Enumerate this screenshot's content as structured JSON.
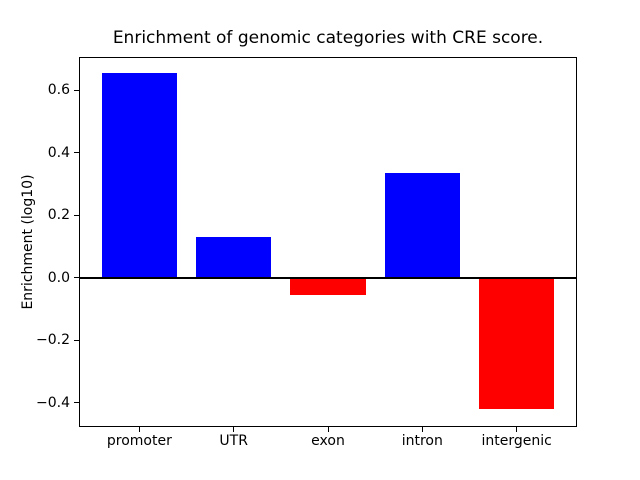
{
  "figure": {
    "background": "#ffffff"
  },
  "chart_data": {
    "type": "bar",
    "title": "Enrichment of genomic categories with CRE score.",
    "xlabel": "",
    "ylabel": "Enrichment (log10)",
    "categories": [
      "promoter",
      "UTR",
      "exon",
      "intron",
      "intergenic"
    ],
    "values": [
      0.655,
      0.13,
      -0.055,
      0.335,
      -0.42
    ],
    "bar_colors": [
      "#0000ff",
      "#0000ff",
      "#ff0000",
      "#0000ff",
      "#ff0000"
    ],
    "positive_color": "#0000ff",
    "negative_color": "#ff0000",
    "bar_width": 0.8,
    "xlim": [
      -0.64,
      4.64
    ],
    "ylim": [
      -0.477,
      0.707
    ],
    "yticks": [
      -0.4,
      -0.2,
      0.0,
      0.2,
      0.4,
      0.6
    ],
    "ytick_labels": [
      "−0.4",
      "−0.2",
      "0.0",
      "0.2",
      "0.4",
      "0.6"
    ],
    "zero_line": true,
    "zero_line_color": "#000000",
    "grid": false,
    "legend": null,
    "axis_color": "#000000",
    "plot_background": "#ffffff"
  }
}
